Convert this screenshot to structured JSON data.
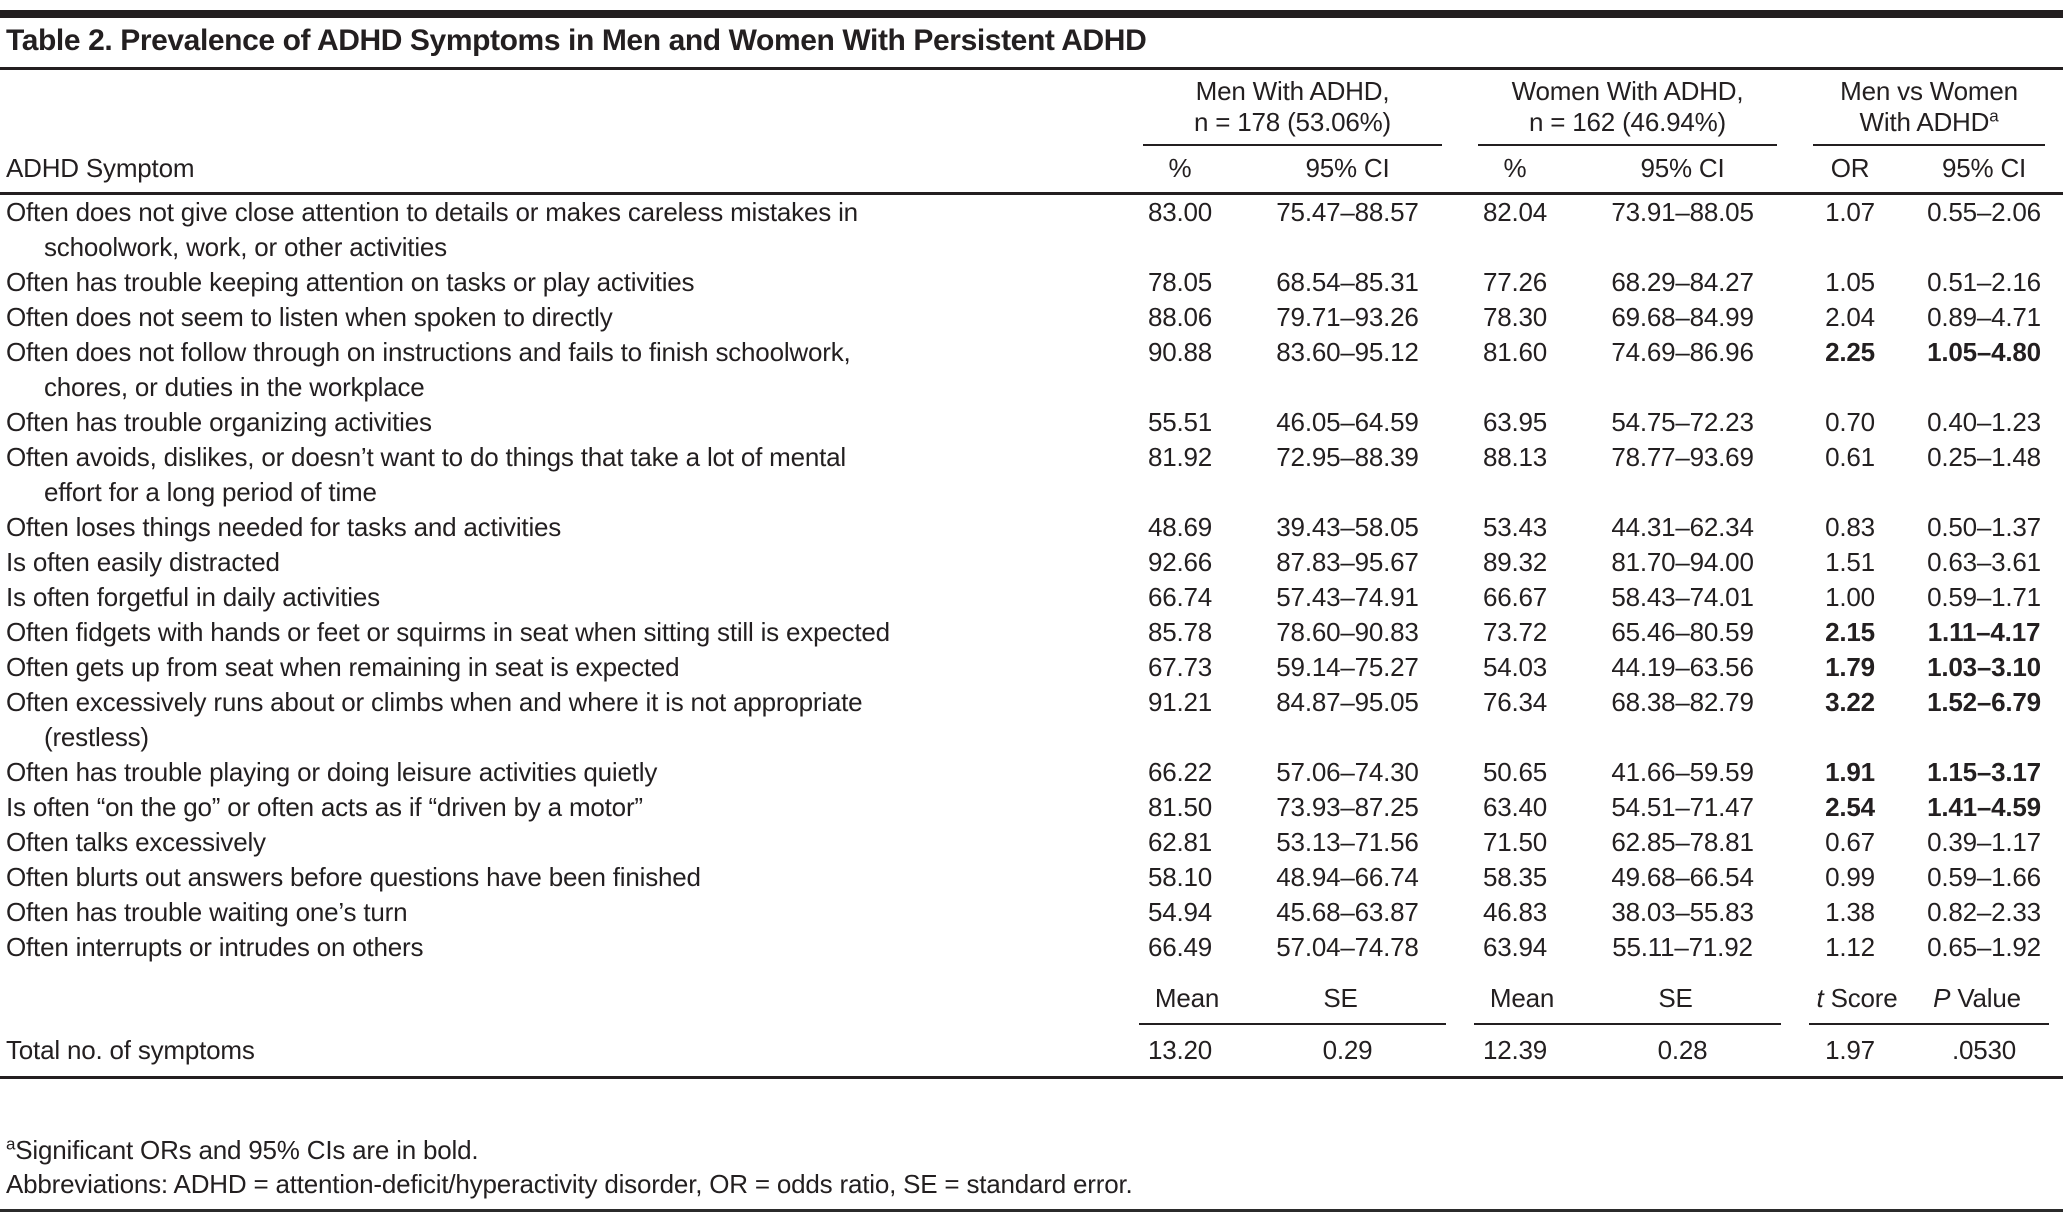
{
  "table": {
    "title": "Table 2. Prevalence of ADHD Symptoms in Men and Women With Persistent ADHD",
    "header": {
      "row_label": "ADHD Symptom",
      "groups": [
        {
          "line1": "Men With ADHD,",
          "line2": "n = 178 (53.06%)",
          "sup": "",
          "col1": "%",
          "col2": "95% CI"
        },
        {
          "line1": "Women With ADHD,",
          "line2": "n = 162 (46.94%)",
          "sup": "",
          "col1": "%",
          "col2": "95% CI"
        },
        {
          "line1": "Men vs Women",
          "line2": "With ADHD",
          "sup": "a",
          "col1": "OR",
          "col2": "95% CI"
        }
      ]
    },
    "rows": [
      {
        "symptom": "Often does not give close attention to details or makes careless mistakes in",
        "symptom2": "schoolwork, work, or other activities",
        "men_pct": "83.00",
        "men_ci": "75.47–88.57",
        "women_pct": "82.04",
        "women_ci": "73.91–88.05",
        "or": "1.07",
        "or_ci": "0.55–2.06",
        "significant": false
      },
      {
        "symptom": "Often has trouble keeping attention on tasks or play activities",
        "symptom2": "",
        "men_pct": "78.05",
        "men_ci": "68.54–85.31",
        "women_pct": "77.26",
        "women_ci": "68.29–84.27",
        "or": "1.05",
        "or_ci": "0.51–2.16",
        "significant": false
      },
      {
        "symptom": "Often does not seem to listen when spoken to directly",
        "symptom2": "",
        "men_pct": "88.06",
        "men_ci": "79.71–93.26",
        "women_pct": "78.30",
        "women_ci": "69.68–84.99",
        "or": "2.04",
        "or_ci": "0.89–4.71",
        "significant": false
      },
      {
        "symptom": "Often does not follow through on instructions and fails to finish schoolwork,",
        "symptom2": "chores, or duties in the workplace",
        "men_pct": "90.88",
        "men_ci": "83.60–95.12",
        "women_pct": "81.60",
        "women_ci": "74.69–86.96",
        "or": "2.25",
        "or_ci": "1.05–4.80",
        "significant": true
      },
      {
        "symptom": "Often has trouble organizing activities",
        "symptom2": "",
        "men_pct": "55.51",
        "men_ci": "46.05–64.59",
        "women_pct": "63.95",
        "women_ci": "54.75–72.23",
        "or": "0.70",
        "or_ci": "0.40–1.23",
        "significant": false
      },
      {
        "symptom": "Often avoids, dislikes, or doesn’t want to do things that take a lot of mental",
        "symptom2": "effort for a long period of time",
        "men_pct": "81.92",
        "men_ci": "72.95–88.39",
        "women_pct": "88.13",
        "women_ci": "78.77–93.69",
        "or": "0.61",
        "or_ci": "0.25–1.48",
        "significant": false
      },
      {
        "symptom": "Often loses things needed for tasks and activities",
        "symptom2": "",
        "men_pct": "48.69",
        "men_ci": "39.43–58.05",
        "women_pct": "53.43",
        "women_ci": "44.31–62.34",
        "or": "0.83",
        "or_ci": "0.50–1.37",
        "significant": false
      },
      {
        "symptom": "Is often easily distracted",
        "symptom2": "",
        "men_pct": "92.66",
        "men_ci": "87.83–95.67",
        "women_pct": "89.32",
        "women_ci": "81.70–94.00",
        "or": "1.51",
        "or_ci": "0.63–3.61",
        "significant": false
      },
      {
        "symptom": "Is often forgetful in daily activities",
        "symptom2": "",
        "men_pct": "66.74",
        "men_ci": "57.43–74.91",
        "women_pct": "66.67",
        "women_ci": "58.43–74.01",
        "or": "1.00",
        "or_ci": "0.59–1.71",
        "significant": false
      },
      {
        "symptom": "Often fidgets with hands or feet or squirms in seat when sitting still is expected",
        "symptom2": "",
        "men_pct": "85.78",
        "men_ci": "78.60–90.83",
        "women_pct": "73.72",
        "women_ci": "65.46–80.59",
        "or": "2.15",
        "or_ci": "1.11–4.17",
        "significant": true
      },
      {
        "symptom": "Often gets up from seat when remaining in seat is expected",
        "symptom2": "",
        "men_pct": "67.73",
        "men_ci": "59.14–75.27",
        "women_pct": "54.03",
        "women_ci": "44.19–63.56",
        "or": "1.79",
        "or_ci": "1.03–3.10",
        "significant": true
      },
      {
        "symptom": "Often excessively runs about or climbs when and where it is not appropriate",
        "symptom2": "(restless)",
        "men_pct": "91.21",
        "men_ci": "84.87–95.05",
        "women_pct": "76.34",
        "women_ci": "68.38–82.79",
        "or": "3.22",
        "or_ci": "1.52–6.79",
        "significant": true
      },
      {
        "symptom": "Often has trouble playing or doing leisure activities quietly",
        "symptom2": "",
        "men_pct": "66.22",
        "men_ci": "57.06–74.30",
        "women_pct": "50.65",
        "women_ci": "41.66–59.59",
        "or": "1.91",
        "or_ci": "1.15–3.17",
        "significant": true
      },
      {
        "symptom": "Is often “on the go” or often acts as if “driven by a motor”",
        "symptom2": "",
        "men_pct": "81.50",
        "men_ci": "73.93–87.25",
        "women_pct": "63.40",
        "women_ci": "54.51–71.47",
        "or": "2.54",
        "or_ci": "1.41–4.59",
        "significant": true
      },
      {
        "symptom": "Often talks excessively",
        "symptom2": "",
        "men_pct": "62.81",
        "men_ci": "53.13–71.56",
        "women_pct": "71.50",
        "women_ci": "62.85–78.81",
        "or": "0.67",
        "or_ci": "0.39–1.17",
        "significant": false
      },
      {
        "symptom": "Often blurts out answers before questions have been finished",
        "symptom2": "",
        "men_pct": "58.10",
        "men_ci": "48.94–66.74",
        "women_pct": "58.35",
        "women_ci": "49.68–66.54",
        "or": "0.99",
        "or_ci": "0.59–1.66",
        "significant": false
      },
      {
        "symptom": "Often has trouble waiting one’s turn",
        "symptom2": "",
        "men_pct": "54.94",
        "men_ci": "45.68–63.87",
        "women_pct": "46.83",
        "women_ci": "38.03–55.83",
        "or": "1.38",
        "or_ci": "0.82–2.33",
        "significant": false
      },
      {
        "symptom": "Often interrupts or intrudes on others",
        "symptom2": "",
        "men_pct": "66.49",
        "men_ci": "57.04–74.78",
        "women_pct": "63.94",
        "women_ci": "55.11–71.92",
        "or": "1.12",
        "or_ci": "0.65–1.92",
        "significant": false
      }
    ],
    "stats_header": {
      "men_mean": "Mean",
      "men_se": "SE",
      "women_mean": "Mean",
      "women_se": "SE",
      "t_italic": "t",
      "t_rest": "Score",
      "p_italic": "P",
      "p_rest": "Value"
    },
    "total_row": {
      "label": "Total no. of symptoms",
      "men_mean": "13.20",
      "men_se": "0.29",
      "women_mean": "12.39",
      "women_se": "0.28",
      "t_score": "1.97",
      "p_value": ".0530"
    },
    "footnotes": {
      "a_sup": "a",
      "a_text": "Significant ORs and 95% CIs are in bold.",
      "abbreviations": "Abbreviations: ADHD = attention-deficit/hyperactivity disorder, OR = odds ratio, SE = standard error."
    }
  }
}
